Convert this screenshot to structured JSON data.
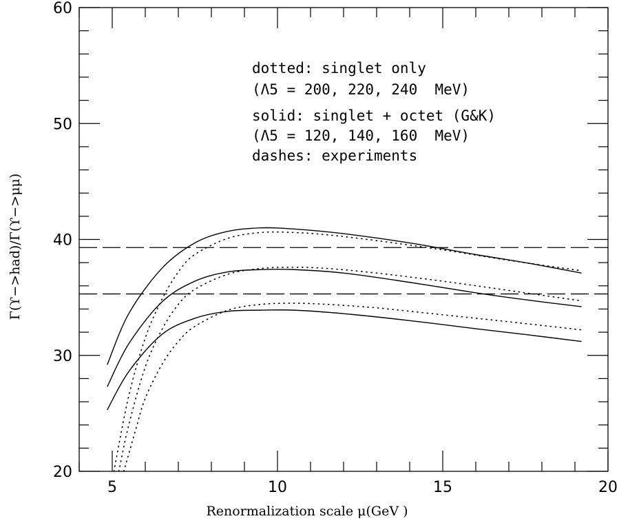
{
  "chart_data": {
    "type": "line",
    "xlabel": "Renormalization scale μ(GeV )",
    "ylabel": "Γ(ϒ−>had)/Γ(ϒ−>μμ)",
    "xlim": [
      4,
      20
    ],
    "ylim": [
      20,
      60
    ],
    "x_ticks": [
      "5",
      "10",
      "15",
      "20"
    ],
    "y_ticks": [
      "20",
      "30",
      "40",
      "50",
      "60"
    ],
    "grid": false,
    "annotations": [
      "dotted: singlet only",
      "(Λ5 = 200, 220, 240  MeV)",
      "solid: singlet + octet (G&K)",
      "(Λ5 = 120, 140, 160  MeV)",
      "dashes: experiments"
    ],
    "series": [
      {
        "style": "solid",
        "x": [
          4.85,
          5.5,
          6.5,
          7.5,
          8.5,
          9.5,
          10.5,
          12,
          14,
          16,
          17.5,
          19.2
        ],
        "y": [
          29.2,
          33.6,
          37.5,
          39.7,
          40.7,
          41.0,
          40.9,
          40.5,
          39.7,
          38.7,
          38.0,
          37.1
        ]
      },
      {
        "style": "solid",
        "x": [
          4.85,
          5.5,
          6.5,
          7.5,
          8.5,
          9.5,
          10.5,
          12,
          14,
          16,
          17.5,
          19.2
        ],
        "y": [
          27.3,
          31.0,
          34.6,
          36.4,
          37.2,
          37.4,
          37.4,
          37.1,
          36.3,
          35.4,
          34.8,
          34.2
        ]
      },
      {
        "style": "solid",
        "x": [
          4.85,
          5.5,
          6.5,
          7.5,
          8.5,
          9.5,
          10.5,
          12,
          14,
          16,
          17.5,
          19.2
        ],
        "y": [
          25.3,
          28.6,
          31.8,
          33.2,
          33.8,
          33.9,
          33.9,
          33.6,
          33.0,
          32.3,
          31.8,
          31.2
        ]
      },
      {
        "style": "dotted",
        "x": [
          5.05,
          5.5,
          6,
          6.5,
          7,
          7.5,
          8.5,
          9.5,
          10.5,
          11.5,
          13,
          15,
          17,
          19.2
        ],
        "y": [
          20.0,
          26.5,
          31.5,
          34.8,
          37.2,
          38.7,
          40.1,
          40.6,
          40.6,
          40.4,
          39.9,
          39.1,
          38.2,
          37.3
        ]
      },
      {
        "style": "dotted",
        "x": [
          5.2,
          5.5,
          6,
          6.5,
          7,
          7.5,
          8.5,
          9.5,
          10.5,
          11.5,
          13,
          15,
          17,
          19.2
        ],
        "y": [
          20.0,
          24.0,
          29.0,
          32.2,
          34.4,
          35.7,
          37.0,
          37.5,
          37.6,
          37.5,
          37.1,
          36.4,
          35.6,
          34.7
        ]
      },
      {
        "style": "dotted",
        "x": [
          5.35,
          5.7,
          6,
          6.5,
          7,
          7.5,
          8.5,
          9.5,
          10.5,
          11.5,
          13,
          15,
          17,
          19.2
        ],
        "y": [
          20.0,
          23.5,
          26.3,
          29.2,
          31.2,
          32.5,
          33.9,
          34.4,
          34.5,
          34.4,
          34.1,
          33.5,
          32.9,
          32.2
        ]
      },
      {
        "style": "dashed",
        "x": [
          4,
          20
        ],
        "y": [
          39.3,
          39.3
        ]
      },
      {
        "style": "dashed",
        "x": [
          4,
          20
        ],
        "y": [
          35.3,
          35.3
        ]
      }
    ]
  }
}
